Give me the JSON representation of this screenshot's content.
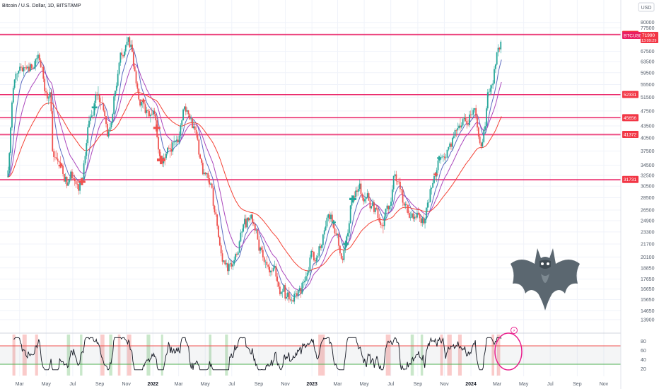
{
  "header": {
    "title": "Bitcoin / U.S. Dollar, 1D, BITSTAMP",
    "currency_button": "USD"
  },
  "price_label": {
    "symbol": "BTCUSD",
    "price": "71990",
    "countdown": "13:09:29"
  },
  "colors": {
    "up": "#26a69a",
    "down": "#ef5350",
    "level_line": "#e91e63",
    "ema_short": "#5c6bc0",
    "ema_mid": "#ab47bc",
    "ema_long": "#f44336",
    "osc_line": "#131722",
    "band_upper": "#ef5350",
    "band_lower": "#4caf50",
    "highlight_circle": "#e91e8c"
  },
  "chart_data": [
    {
      "type": "line",
      "name": "price",
      "y_ticks": [
        "80000",
        "77500",
        "67500",
        "63500",
        "59500",
        "55500",
        "51500",
        "47500",
        "43500",
        "40500",
        "37500",
        "34500",
        "32500",
        "30500",
        "28500",
        "26500",
        "24900",
        "23300",
        "21700",
        "20100",
        "18850",
        "17650",
        "16650",
        "15650",
        "14650",
        "13900"
      ],
      "x_ticks": [
        "Mar",
        "May",
        "Jul",
        "Sep",
        "Nov",
        "2022",
        "Mar",
        "May",
        "Jul",
        "Sep",
        "Nov",
        "2023",
        "Mar",
        "May",
        "Jul",
        "Sep",
        "Nov",
        "2024",
        "Mar",
        "May",
        "Jul",
        "Sep",
        "Nov"
      ],
      "levels": [
        "74577",
        "52331",
        "45656",
        "41372",
        "31731"
      ],
      "y_scale": "log",
      "x": [
        "2021-02-01",
        "2021-02-20",
        "2021-03-13",
        "2021-04-14",
        "2021-05-12",
        "2021-05-19",
        "2021-06-22",
        "2021-07-20",
        "2021-08-14",
        "2021-09-06",
        "2021-09-21",
        "2021-10-20",
        "2021-11-10",
        "2021-12-04",
        "2022-01-01",
        "2022-01-24",
        "2022-03-28",
        "2022-05-09",
        "2022-06-18",
        "2022-08-14",
        "2022-09-15",
        "2022-11-09",
        "2022-11-21",
        "2023-01-14",
        "2023-02-16",
        "2023-03-10",
        "2023-04-14",
        "2023-06-15",
        "2023-07-13",
        "2023-08-17",
        "2023-09-11",
        "2023-10-23",
        "2023-12-08",
        "2024-01-11",
        "2024-01-23",
        "2024-02-15",
        "2024-02-28",
        "2024-03-05",
        "2024-03-12"
      ],
      "series": [
        {
          "values": [
            33000,
            57000,
            61000,
            63500,
            50000,
            37000,
            31500,
            30000,
            47500,
            52500,
            42000,
            64000,
            68500,
            49000,
            47000,
            35000,
            47500,
            30500,
            19000,
            24800,
            19600,
            16000,
            15600,
            20800,
            24800,
            20500,
            30500,
            25000,
            31500,
            26000,
            25000,
            34500,
            44000,
            45600,
            39600,
            52000,
            61000,
            68000,
            72000
          ]
        }
      ]
    },
    {
      "type": "line",
      "name": "oscillator",
      "y_ticks": [
        "80",
        "60",
        "40",
        "20"
      ],
      "bands": [
        30,
        70
      ]
    }
  ]
}
